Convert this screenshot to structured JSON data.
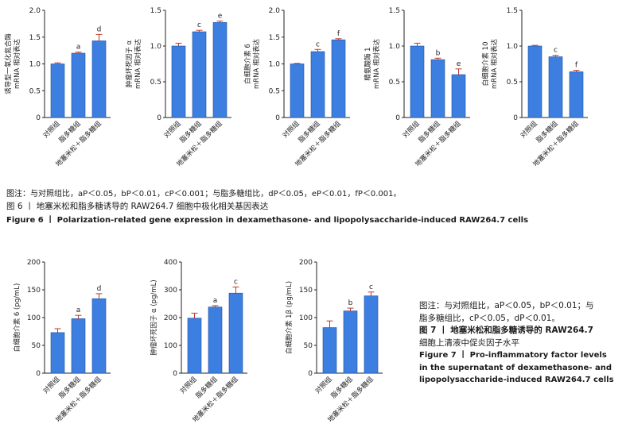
{
  "figure6": {
    "note": "图注：与对照组比，aP＜0.05，bP＜0.01，cP＜0.001；与脂多糖组比，dP＜0.05，eP＜0.01，fP＜0.001。",
    "title_cn": "图 6 丨 地塞米松和脂多糖诱导的 RAW264.7 细胞中极化相关基因表达",
    "title_en": "Figure 6 丨 Polarization-related gene expression in dexamethasone- and lipopolysaccharide-induced RAW264.7 cells"
  },
  "figure7": {
    "note_line1": "图注：与对照组比，aP＜0.05，bP＜0.01；与",
    "note_line2": "脂多糖组比，cP＜0.05，dP＜0.01。",
    "title_cn_line1": "图 7 丨 地塞米松和脂多糖诱导的 RAW264.7",
    "title_cn_line2": "细胞上清液中促炎因子水平",
    "title_en_line1": "Figure 7 丨 Pro-inflammatory factor levels",
    "title_en_line2": "in the supernatant of dexamethasone- and",
    "title_en_line3": "lipopolysaccharide-induced RAW264.7 cells"
  },
  "colors": {
    "bar": "#3d7fe0",
    "error": "#c0392b",
    "axis": "#222222"
  },
  "chart_data": [
    {
      "id": "f6a",
      "type": "bar",
      "ylabel_lines": [
        "诱导型一氧化氮合酶",
        "mRNA 相对表达"
      ],
      "categories": [
        "对照组",
        "脂多糖组",
        "地塞米松＋脂多糖组"
      ],
      "values": [
        1.0,
        1.2,
        1.43
      ],
      "errors": [
        0.02,
        0.02,
        0.12
      ],
      "annotations": [
        "",
        "a",
        "d"
      ],
      "ylim": [
        0,
        2.0
      ],
      "yticks": [
        "0",
        "0.5",
        "1.0",
        "1.5",
        "2.0"
      ]
    },
    {
      "id": "f6b",
      "type": "bar",
      "ylabel_lines": [
        "肿瘤坏死因子 α",
        "mRNA 相对表达"
      ],
      "categories": [
        "对照组",
        "脂多糖组",
        "地塞米松＋脂多糖组"
      ],
      "values": [
        1.0,
        1.2,
        1.33
      ],
      "errors": [
        0.04,
        0.02,
        0.02
      ],
      "annotations": [
        "",
        "c",
        "e"
      ],
      "ylim": [
        0,
        1.5
      ],
      "yticks": [
        "0",
        "0.5",
        "1.0",
        "1.5"
      ]
    },
    {
      "id": "f6c",
      "type": "bar",
      "ylabel_lines": [
        "白细胞介素 6",
        "mRNA 相对表达"
      ],
      "categories": [
        "对照组",
        "脂多糖组",
        "地塞米松＋脂多糖组"
      ],
      "values": [
        1.0,
        1.23,
        1.45
      ],
      "errors": [
        0.01,
        0.04,
        0.02
      ],
      "annotations": [
        "",
        "c",
        "f"
      ],
      "ylim": [
        0,
        2.0
      ],
      "yticks": [
        "0",
        "0.5",
        "1.0",
        "1.5",
        "2.0"
      ]
    },
    {
      "id": "f6d",
      "type": "bar",
      "ylabel_lines": [
        "精氨酸酶 1",
        "mRNA 相对表达"
      ],
      "categories": [
        "对照组",
        "脂多糖组",
        "地塞米松＋脂多糖组"
      ],
      "values": [
        1.0,
        0.81,
        0.6
      ],
      "errors": [
        0.04,
        0.02,
        0.08
      ],
      "annotations": [
        "",
        "b",
        "e"
      ],
      "ylim": [
        0,
        1.5
      ],
      "yticks": [
        "0",
        "0.5",
        "1.0",
        "1.5"
      ]
    },
    {
      "id": "f6e",
      "type": "bar",
      "ylabel_lines": [
        "白细胞介素 10",
        "mRNA 相对表达"
      ],
      "categories": [
        "对照组",
        "脂多糖组",
        "地塞米松＋脂多糖组"
      ],
      "values": [
        1.0,
        0.85,
        0.64
      ],
      "errors": [
        0.01,
        0.02,
        0.02
      ],
      "annotations": [
        "",
        "c",
        "f"
      ],
      "ylim": [
        0,
        1.5
      ],
      "yticks": [
        "0",
        "0.5",
        "1.0",
        "1.5"
      ]
    },
    {
      "id": "f7a",
      "type": "bar",
      "ylabel_lines": [
        "白细胞介素 6 (pg/mL)"
      ],
      "categories": [
        "对照组",
        "脂多糖组",
        "地塞米松＋脂多糖组"
      ],
      "values": [
        73,
        98,
        134
      ],
      "errors": [
        7,
        6,
        9
      ],
      "annotations": [
        "",
        "a",
        "d"
      ],
      "ylim": [
        0,
        200
      ],
      "yticks": [
        "0",
        "50",
        "100",
        "150",
        "200"
      ]
    },
    {
      "id": "f7b",
      "type": "bar",
      "ylabel_lines": [
        "肿瘤坏死因子 α (pg/mL)"
      ],
      "categories": [
        "对照组",
        "脂多糖组",
        "地塞米松＋脂多糖组"
      ],
      "values": [
        198,
        238,
        288
      ],
      "errors": [
        18,
        5,
        22
      ],
      "annotations": [
        "",
        "a",
        "c"
      ],
      "ylim": [
        0,
        400
      ],
      "yticks": [
        "0",
        "100",
        "200",
        "300",
        "400"
      ]
    },
    {
      "id": "f7c",
      "type": "bar",
      "ylabel_lines": [
        "白细胞介素 1β (pg/mL)"
      ],
      "categories": [
        "对照组",
        "脂多糖组",
        "地塞米松＋脂多糖组"
      ],
      "values": [
        82,
        112,
        139
      ],
      "errors": [
        12,
        5,
        7
      ],
      "annotations": [
        "",
        "b",
        "c"
      ],
      "ylim": [
        0,
        200
      ],
      "yticks": [
        "0",
        "50",
        "100",
        "150",
        "200"
      ]
    }
  ]
}
